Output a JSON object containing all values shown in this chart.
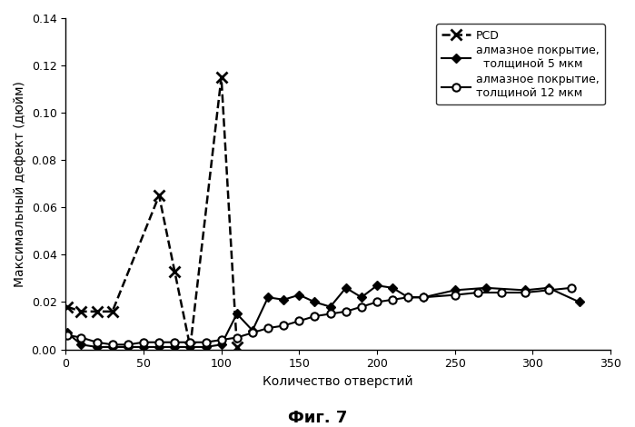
{
  "title_fig": "Фиг. 7",
  "xlabel": "Количество отверстий",
  "ylabel": "Максимальный дефект (дюйм)",
  "xlim": [
    0,
    350
  ],
  "ylim": [
    0,
    0.14
  ],
  "yticks": [
    0,
    0.02,
    0.04,
    0.06,
    0.08,
    0.1,
    0.12,
    0.14
  ],
  "xticks": [
    0,
    50,
    100,
    150,
    200,
    250,
    300,
    350
  ],
  "series_pcd": {
    "label_line1": "PCD",
    "x": [
      1,
      10,
      20,
      30,
      60,
      70,
      80,
      100,
      110
    ],
    "y": [
      0.018,
      0.016,
      0.016,
      0.016,
      0.065,
      0.033,
      0.001,
      0.115,
      0.001
    ],
    "linestyle": "--",
    "marker": "x",
    "color": "#000000",
    "linewidth": 1.8,
    "markersize": 8,
    "markeredgewidth": 2.0
  },
  "series_5mkm": {
    "label_line1": "алмазное покрытие,",
    "label_line2": "  толщиной 5 мкм",
    "x": [
      1,
      10,
      20,
      30,
      40,
      50,
      60,
      70,
      80,
      90,
      100,
      110,
      120,
      130,
      140,
      150,
      160,
      170,
      180,
      190,
      200,
      210,
      220,
      230,
      250,
      270,
      295,
      310,
      330
    ],
    "y": [
      0.007,
      0.002,
      0.001,
      0.001,
      0.001,
      0.001,
      0.001,
      0.001,
      0.001,
      0.001,
      0.002,
      0.015,
      0.008,
      0.022,
      0.021,
      0.023,
      0.02,
      0.018,
      0.026,
      0.022,
      0.027,
      0.026,
      0.022,
      0.022,
      0.025,
      0.026,
      0.025,
      0.026,
      0.02
    ],
    "linestyle": "-",
    "marker": "D",
    "color": "#000000",
    "linewidth": 1.5,
    "markersize": 5,
    "markerfacecolor": "#000000",
    "markeredgecolor": "#000000"
  },
  "series_12mkm": {
    "label_line1": "алмазное покрытие,",
    "label_line2": "толщиной 12 мкм",
    "x": [
      1,
      10,
      20,
      30,
      40,
      50,
      60,
      70,
      80,
      90,
      100,
      110,
      120,
      130,
      140,
      150,
      160,
      170,
      180,
      190,
      200,
      210,
      220,
      230,
      250,
      265,
      280,
      295,
      310,
      325
    ],
    "y": [
      0.006,
      0.005,
      0.003,
      0.002,
      0.002,
      0.003,
      0.003,
      0.003,
      0.003,
      0.003,
      0.004,
      0.005,
      0.007,
      0.009,
      0.01,
      0.012,
      0.014,
      0.015,
      0.016,
      0.018,
      0.02,
      0.021,
      0.022,
      0.022,
      0.023,
      0.024,
      0.024,
      0.024,
      0.025,
      0.026
    ],
    "linestyle": "-",
    "marker": "o",
    "color": "#000000",
    "linewidth": 1.5,
    "markersize": 6,
    "markerfacecolor": "#ffffff",
    "markeredgecolor": "#000000",
    "markeredgewidth": 1.5
  },
  "background_color": "#ffffff",
  "font_size_ticks": 9,
  "font_size_labels": 10,
  "font_size_legend": 9,
  "font_size_title": 13
}
